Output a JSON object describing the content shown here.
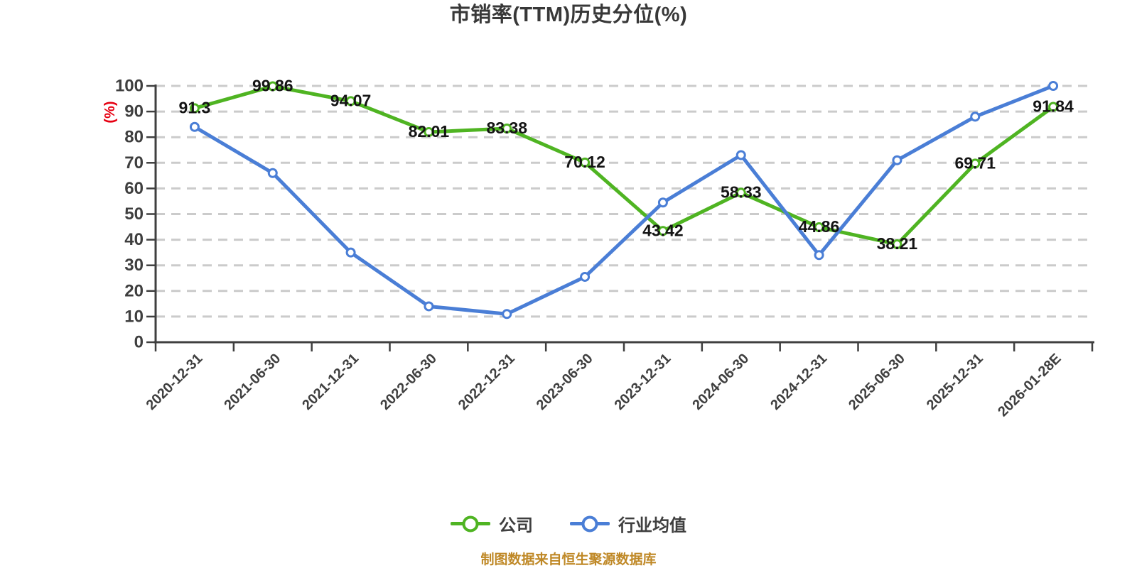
{
  "title": "市销率(TTM)历史分位(%)",
  "footer": "制图数据来自恒生聚源数据库",
  "y_axis_unit": "(%)",
  "colors": {
    "company_series": "#4FB422",
    "industry_series": "#4A7ED6",
    "grid_line": "#CBCBCB",
    "axis": "#3F3F3F",
    "tick_label": "#3F3F3F",
    "value_label": "#141414",
    "title": "#383838",
    "unit_label": "#E60012",
    "footer": "#BF8826",
    "background": "#FFFFFF",
    "marker_fill": "#FFFFFF"
  },
  "chart_data": {
    "type": "line",
    "title": "市销率(TTM)历史分位(%)",
    "categories": [
      "2020-12-31",
      "2021-06-30",
      "2021-12-31",
      "2022-06-30",
      "2022-12-31",
      "2023-06-30",
      "2023-12-31",
      "2024-06-30",
      "2024-12-31",
      "2025-06-30",
      "2025-12-31",
      "2026-01-28E"
    ],
    "series": [
      {
        "name": "公司",
        "color": "#4FB422",
        "show_value_labels": true,
        "values": [
          91.3,
          99.86,
          94.07,
          82.01,
          83.38,
          70.12,
          43.42,
          58.33,
          44.86,
          38.21,
          69.71,
          91.84
        ]
      },
      {
        "name": "行业均值",
        "color": "#4A7ED6",
        "show_value_labels": false,
        "values": [
          84,
          66,
          35,
          14,
          11,
          25.5,
          54.5,
          73,
          34,
          71,
          88,
          100
        ]
      }
    ],
    "xlabel": "",
    "ylabel": "(%)",
    "ylim": [
      0,
      100
    ],
    "y_tick_step": 10,
    "grid": "horizontal-dashed",
    "legend_position": "bottom",
    "marker": "circle-white-fill",
    "x_label_rotation_deg": -45
  }
}
